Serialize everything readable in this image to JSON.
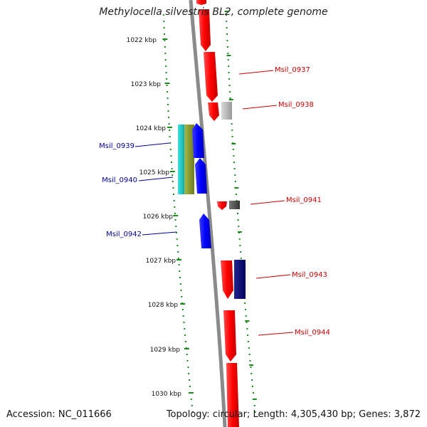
{
  "title": "Methylocella silvestris BL2, complete genome",
  "footer": {
    "accession_label": "Accession:",
    "accession": "NC_011666",
    "topology_label": "Topology:",
    "topology": "circular",
    "length_label": "Length:",
    "length": "4,305,430 bp",
    "genes_label": "Genes:",
    "genes": "3,872"
  },
  "scale": {
    "unit": "kbp",
    "ticks": [
      "1022 kbp",
      "1023 kbp",
      "1024 kbp",
      "1025 kbp",
      "1026 kbp",
      "1027 kbp",
      "1028 kbp",
      "1029 kbp",
      "1030 kbp"
    ]
  },
  "genes": [
    {
      "id": "Msil_0937",
      "strand": "forward",
      "color": "#cc0000"
    },
    {
      "id": "Msil_0938",
      "strand": "forward",
      "color": "#cc0000"
    },
    {
      "id": "Msil_0939",
      "strand": "reverse",
      "color": "#00008b"
    },
    {
      "id": "Msil_0940",
      "strand": "reverse",
      "color": "#00008b"
    },
    {
      "id": "Msil_0941",
      "strand": "forward",
      "color": "#cc0000"
    },
    {
      "id": "Msil_0942",
      "strand": "reverse",
      "color": "#00008b"
    },
    {
      "id": "Msil_0943",
      "strand": "forward",
      "color": "#cc0000"
    },
    {
      "id": "Msil_0944",
      "strand": "forward",
      "color": "#cc0000"
    }
  ],
  "colors": {
    "forward_gene": "#ff0000",
    "reverse_gene": "#0000ee",
    "backbone": "#888888",
    "dotted_guides": "#1a8a1a"
  }
}
